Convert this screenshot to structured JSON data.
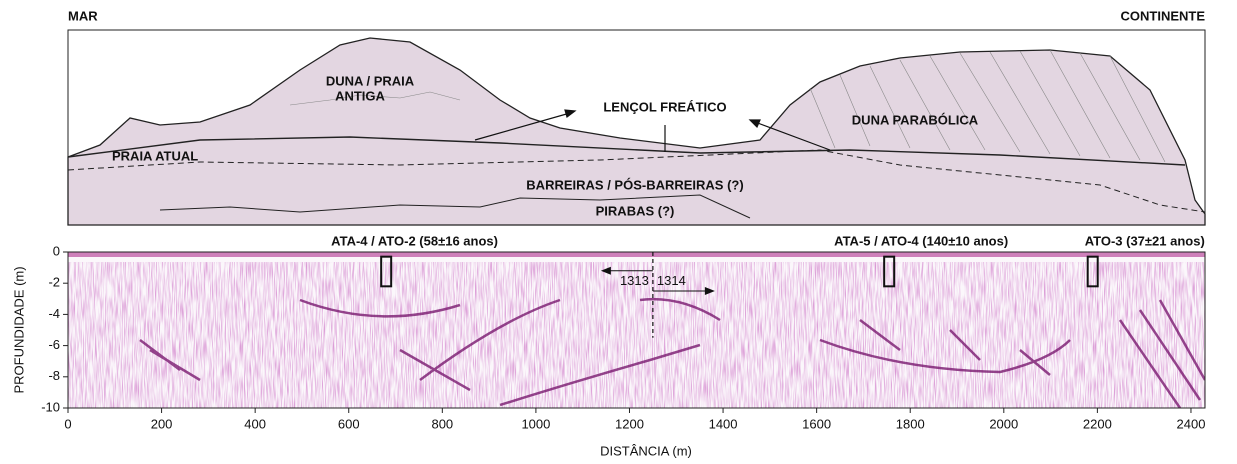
{
  "sketch": {
    "left_label": "MAR",
    "right_label": "CONTINENTE",
    "labels": [
      "DUNA / PRAIA",
      "ANTIGA",
      "LENÇOL FREÁTICO",
      "DUNA PARABÓLICA",
      "PRAIA ATUAL",
      "BARREIRAS / PÓS-BARREIRAS (?)",
      "PIRABAS (?)"
    ]
  },
  "chart_data": {
    "type": "radargram",
    "xlabel": "DISTÂNCIA (m)",
    "ylabel": "PROFUNDIDADE (m)",
    "xlim": [
      0,
      2430
    ],
    "ylim": [
      -10,
      0
    ],
    "xticks": [
      0,
      200,
      400,
      600,
      800,
      1000,
      1200,
      1400,
      1600,
      1800,
      2000,
      2200,
      2400
    ],
    "yticks": [
      0,
      -2,
      -4,
      -6,
      -8,
      -10
    ],
    "samples": [
      {
        "label": "ATA-4 / ATO-2  (58±16 anos)",
        "x": 680
      },
      {
        "label": "ATA-5 / ATO-4  (140±10 anos)",
        "x": 1755
      },
      {
        "label": "ATO-3  (37±21 anos)",
        "x": 2190
      }
    ],
    "profile_boundary": 1250,
    "profiles": [
      "1313",
      "1314"
    ]
  }
}
